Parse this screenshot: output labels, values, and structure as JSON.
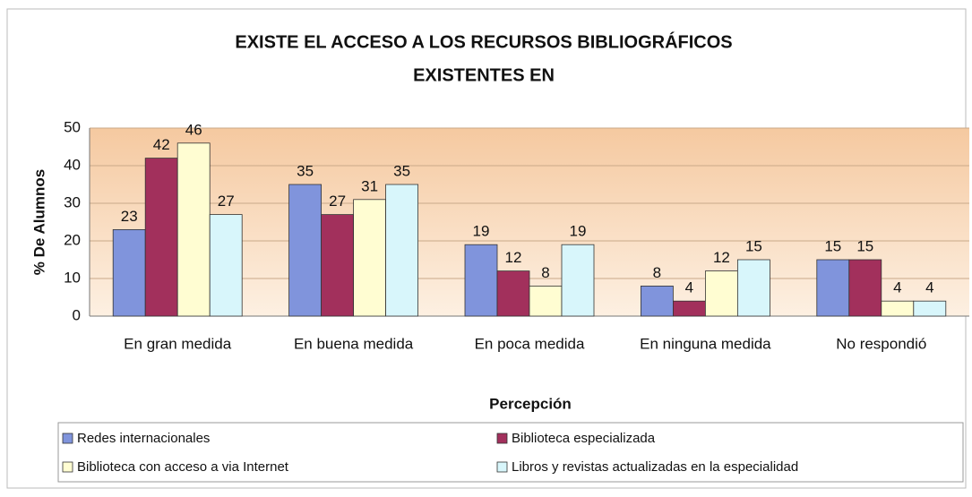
{
  "chart_data": {
    "type": "bar",
    "title": [
      "EXISTE EL ACCESO A  LOS RECURSOS BIBLIOGRÁFICOS",
      "EXISTENTES EN"
    ],
    "x_label": "Percepción",
    "y_label": "% De Alumnos",
    "categories": [
      "En gran medida",
      "En buena medida",
      "En poca medida",
      "En ninguna medida",
      "No respondió"
    ],
    "series": [
      {
        "name": "Redes internacionales",
        "color": "#8094dc",
        "values": [
          23,
          35,
          19,
          8,
          15
        ]
      },
      {
        "name": "Biblioteca especializada",
        "color": "#a2305c",
        "values": [
          42,
          27,
          12,
          4,
          15
        ]
      },
      {
        "name": "Biblioteca con acceso a via Internet",
        "color": "#fffdd2",
        "values": [
          46,
          31,
          8,
          12,
          4
        ]
      },
      {
        "name": "Libros y revistas actualizadas en la especialidad",
        "color": "#d8f6fb",
        "values": [
          27,
          35,
          19,
          15,
          4
        ]
      }
    ],
    "ylim": [
      0,
      50
    ],
    "yticks": [
      0,
      10,
      20,
      30,
      40,
      50
    ],
    "grid": true
  }
}
